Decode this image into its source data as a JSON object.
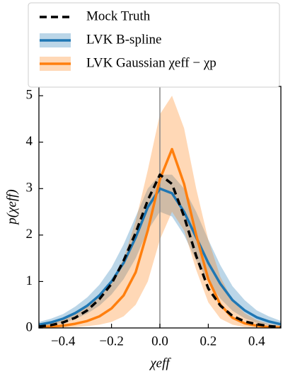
{
  "chart_data": {
    "type": "line",
    "x_label": "χeff",
    "y_label": "p(χeff)",
    "x": [
      -0.5,
      -0.45,
      -0.4,
      -0.35,
      -0.3,
      -0.25,
      -0.2,
      -0.15,
      -0.1,
      -0.05,
      0,
      0.05,
      0.1,
      0.15,
      0.2,
      0.25,
      0.3,
      0.35,
      0.4,
      0.45,
      0.5
    ],
    "series": [
      {
        "name": "Mock Truth",
        "color": "#000000",
        "dashed": true,
        "values": [
          0.03,
          0.06,
          0.12,
          0.22,
          0.38,
          0.62,
          0.95,
          1.45,
          2.05,
          2.75,
          3.3,
          3.1,
          2.4,
          1.55,
          0.85,
          0.48,
          0.26,
          0.14,
          0.08,
          0.04,
          0.02
        ]
      },
      {
        "name": "LVK B-spline",
        "color": "#1f77b4",
        "values": [
          0.07,
          0.12,
          0.2,
          0.32,
          0.48,
          0.7,
          1.0,
          1.4,
          1.95,
          2.6,
          3.0,
          2.9,
          2.5,
          1.95,
          1.4,
          0.95,
          0.6,
          0.38,
          0.23,
          0.14,
          0.08
        ],
        "lower": [
          0.03,
          0.06,
          0.11,
          0.19,
          0.31,
          0.48,
          0.72,
          1.05,
          1.5,
          2.1,
          2.5,
          2.4,
          2.0,
          1.45,
          1.0,
          0.63,
          0.37,
          0.21,
          0.11,
          0.06,
          0.03
        ],
        "upper": [
          0.13,
          0.2,
          0.3,
          0.46,
          0.66,
          0.93,
          1.3,
          1.8,
          2.4,
          3.0,
          3.3,
          3.3,
          3.0,
          2.5,
          1.9,
          1.35,
          0.9,
          0.6,
          0.38,
          0.25,
          0.15
        ]
      },
      {
        "name": "LVK Gaussian χeff − χp",
        "color": "#ff7f0e",
        "values": [
          0.02,
          0.03,
          0.05,
          0.09,
          0.15,
          0.25,
          0.42,
          0.7,
          1.2,
          2.1,
          3.2,
          3.85,
          3.1,
          2.0,
          1.05,
          0.5,
          0.22,
          0.1,
          0.05,
          0.02,
          0.01
        ],
        "lower": [
          0.0,
          0.01,
          0.01,
          0.02,
          0.04,
          0.07,
          0.13,
          0.25,
          0.5,
          1.0,
          1.9,
          2.5,
          2.1,
          1.25,
          0.55,
          0.2,
          0.07,
          0.02,
          0.01,
          0.0,
          0.0
        ],
        "upper": [
          0.1,
          0.14,
          0.2,
          0.3,
          0.45,
          0.68,
          1.0,
          1.5,
          2.3,
          3.4,
          4.6,
          5.0,
          4.3,
          3.0,
          1.9,
          1.1,
          0.6,
          0.32,
          0.17,
          0.09,
          0.05
        ]
      }
    ],
    "vline": 0,
    "xlim": [
      -0.5,
      0.5
    ],
    "ylim": [
      0,
      5.2
    ],
    "xticks": [
      {
        "value": -0.4,
        "label": "−0.4"
      },
      {
        "value": -0.2,
        "label": "−0.2"
      },
      {
        "value": 0,
        "label": "0.0"
      },
      0.2,
      0.4
    ],
    "yticks": [
      0,
      1,
      2,
      3,
      4,
      5
    ],
    "legend": "top"
  }
}
